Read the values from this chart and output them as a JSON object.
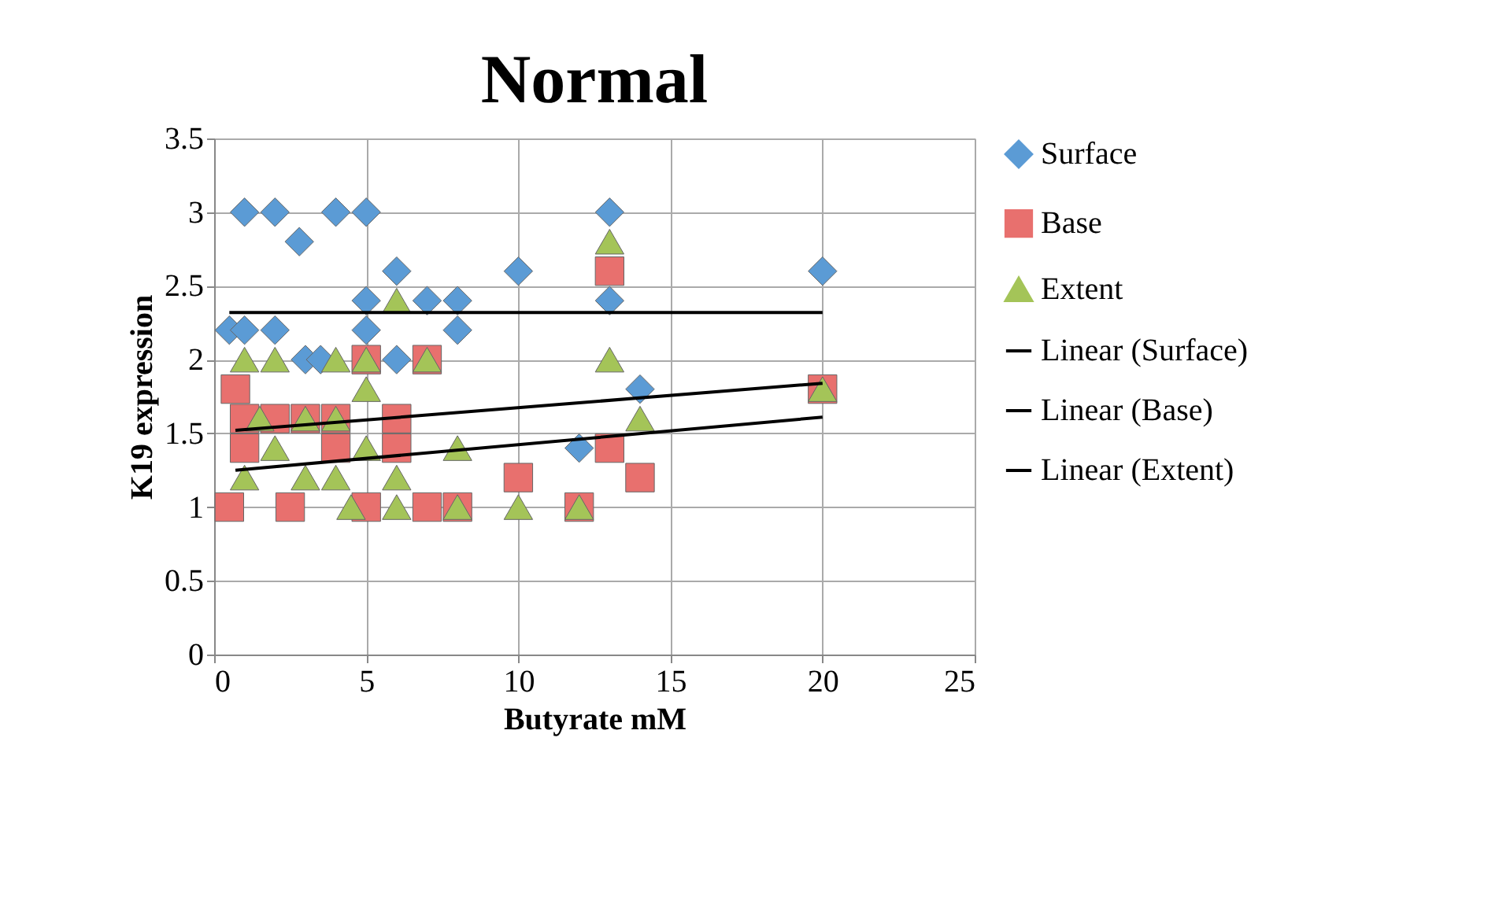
{
  "chart_data": {
    "type": "scatter",
    "title": "Normal",
    "xlabel": "Butyrate mM",
    "ylabel": "K19 expression",
    "xlim": [
      0,
      25
    ],
    "xticks": [
      0,
      5,
      10,
      15,
      20,
      25
    ],
    "ylim": [
      0,
      3.5
    ],
    "yticks": [
      0,
      0.5,
      1,
      1.5,
      2,
      2.5,
      3,
      3.5
    ],
    "grid": true,
    "legend": "right",
    "series": [
      {
        "name": "Surface",
        "marker": "diamond",
        "color": "#5b9bd5",
        "x": [
          1,
          2,
          4,
          5,
          2.8,
          6,
          10,
          13,
          20,
          5,
          7,
          8,
          0.5,
          1,
          2,
          5,
          8,
          3,
          3.5,
          6,
          13,
          14,
          12
        ],
        "values": [
          3,
          3,
          3,
          3,
          2.8,
          2.6,
          2.6,
          3,
          2.6,
          2.4,
          2.4,
          2.4,
          2.2,
          2.2,
          2.2,
          2.2,
          2.2,
          2,
          2,
          2,
          2.4,
          1.8,
          1.4
        ]
      },
      {
        "name": "Base",
        "marker": "square",
        "color": "#e8706e",
        "x": [
          0.5,
          0.7,
          1,
          1,
          2,
          3,
          2.5,
          4,
          4,
          5,
          5,
          6,
          6,
          7,
          7,
          8,
          10,
          12,
          13,
          13,
          14,
          20
        ],
        "values": [
          1,
          1.8,
          1.6,
          1.4,
          1.6,
          1.6,
          1,
          1.6,
          1.4,
          1,
          2,
          1.6,
          1.4,
          2,
          1,
          1,
          1.2,
          1,
          2.6,
          1.4,
          1.2,
          1.8
        ]
      },
      {
        "name": "Extent",
        "marker": "triangle",
        "color": "#a4c458",
        "x": [
          1,
          2,
          4,
          5,
          7,
          6,
          13,
          13,
          5,
          1,
          1.5,
          2,
          3,
          4,
          5,
          3,
          4,
          4.5,
          6,
          6,
          8,
          8,
          10,
          12,
          14,
          20
        ],
        "values": [
          2,
          2,
          2,
          2,
          2,
          2.4,
          2.8,
          2,
          1.8,
          1.2,
          1.6,
          1.4,
          1.6,
          1.6,
          1.4,
          1.2,
          1.2,
          1,
          1.2,
          1,
          1.4,
          1,
          1,
          1,
          1.6,
          1.8
        ]
      },
      {
        "name": "Linear (Surface)",
        "type": "line",
        "marker": "none",
        "color": "#000000",
        "x": [
          0.5,
          20
        ],
        "values": [
          2.32,
          2.32
        ]
      },
      {
        "name": "Linear (Base)",
        "type": "line",
        "marker": "none",
        "color": "#000000",
        "x": [
          0.7,
          20
        ],
        "values": [
          1.52,
          1.84
        ]
      },
      {
        "name": "Linear (Extent)",
        "type": "line",
        "marker": "none",
        "color": "#000000",
        "x": [
          0.7,
          20
        ],
        "values": [
          1.25,
          1.61
        ]
      }
    ]
  }
}
